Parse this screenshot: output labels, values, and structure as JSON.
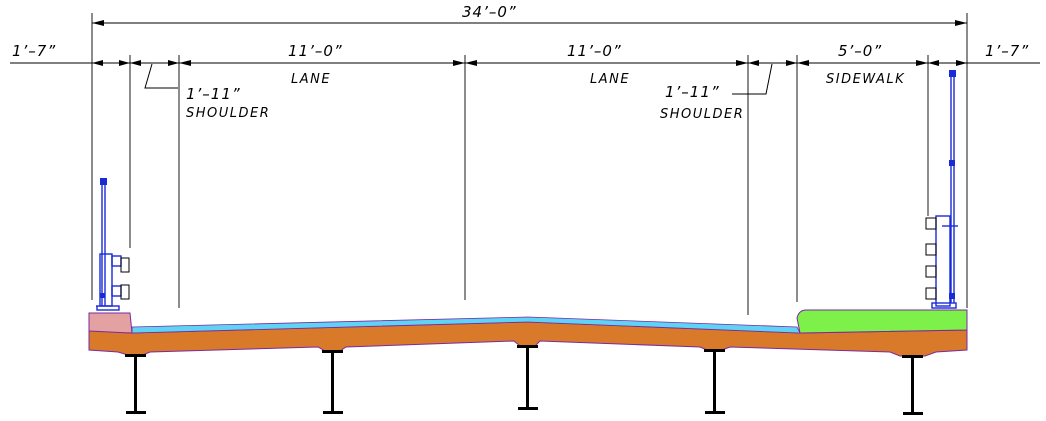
{
  "dimensions": {
    "overall": "34’–0”",
    "left_overhang": "1’–7”",
    "right_overhang": "1’–7”",
    "left_lane": "11’–0”",
    "right_lane": "11’–0”",
    "sidewalk": "5’–0”",
    "left_shoulder": "1’–11”",
    "right_shoulder": "1’–11”"
  },
  "labels": {
    "left_lane": "LANE",
    "right_lane": "LANE",
    "left_shoulder": "SHOULDER",
    "right_shoulder": "SHOULDER",
    "sidewalk": "SIDEWALK"
  },
  "colors": {
    "deck": "#d97a2b",
    "overlay": "#5fd3f3",
    "sidewalk": "#7ef04a",
    "barrier": "#e3a1a1",
    "railing": "#1a2bd6",
    "outline": "#7a2aa0"
  },
  "girder_count": 5
}
